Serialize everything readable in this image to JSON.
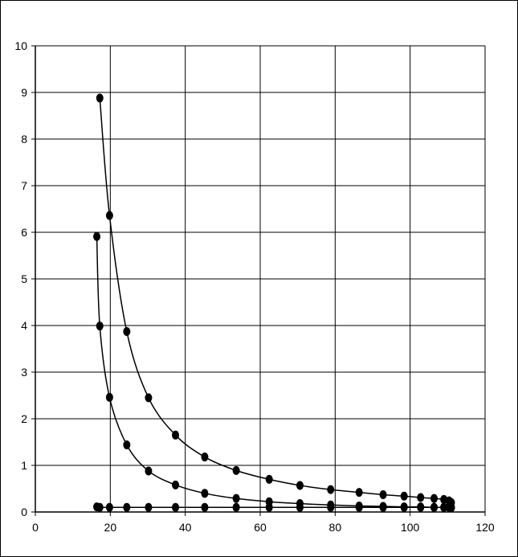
{
  "chart_data": {
    "type": "scatter",
    "title": "",
    "xlabel": "",
    "ylabel": "",
    "xlim": [
      0,
      120
    ],
    "ylim": [
      0,
      10
    ],
    "x_ticks": [
      "0",
      "20",
      "40",
      "60",
      "80",
      "100",
      "120"
    ],
    "y_ticks": [
      "0",
      "1",
      "2",
      "3",
      "4",
      "5",
      "6",
      "7",
      "8",
      "9",
      "10"
    ],
    "grid": true,
    "legend": "none",
    "colors": {
      "series": "#000000",
      "grid": "#000000",
      "background": "#ffffff"
    },
    "series": [
      {
        "points": [
          [
            17.2,
            8.88
          ],
          [
            19.8,
            6.36
          ],
          [
            24.4,
            3.87
          ],
          [
            30.2,
            2.45
          ],
          [
            37.4,
            1.65
          ],
          [
            45.2,
            1.18
          ],
          [
            53.6,
            0.89
          ],
          [
            62.4,
            0.7
          ],
          [
            70.6,
            0.57
          ],
          [
            78.8,
            0.48
          ],
          [
            86.4,
            0.42
          ],
          [
            92.8,
            0.37
          ],
          [
            98.4,
            0.34
          ],
          [
            102.8,
            0.31
          ],
          [
            106.4,
            0.29
          ],
          [
            109.0,
            0.27
          ],
          [
            110.4,
            0.24
          ],
          [
            111.0,
            0.2
          ]
        ]
      },
      {
        "points": [
          [
            16.4,
            5.91
          ],
          [
            17.2,
            3.99
          ],
          [
            19.8,
            2.46
          ],
          [
            24.4,
            1.44
          ],
          [
            30.2,
            0.88
          ],
          [
            37.4,
            0.58
          ],
          [
            45.2,
            0.4
          ],
          [
            53.6,
            0.29
          ],
          [
            62.4,
            0.22
          ],
          [
            70.6,
            0.18
          ],
          [
            78.8,
            0.15
          ],
          [
            86.4,
            0.13
          ],
          [
            92.8,
            0.12
          ],
          [
            98.4,
            0.11
          ],
          [
            102.8,
            0.11
          ],
          [
            106.4,
            0.1
          ],
          [
            109.0,
            0.1
          ],
          [
            110.4,
            0.1
          ],
          [
            111.0,
            0.09
          ]
        ]
      },
      {
        "points": [
          [
            16.4,
            0.11
          ],
          [
            17.2,
            0.1
          ],
          [
            19.8,
            0.1
          ],
          [
            24.4,
            0.1
          ],
          [
            30.2,
            0.1
          ],
          [
            37.4,
            0.1
          ],
          [
            45.2,
            0.1
          ],
          [
            53.6,
            0.1
          ],
          [
            62.4,
            0.1
          ],
          [
            70.6,
            0.1
          ],
          [
            78.8,
            0.1
          ],
          [
            86.4,
            0.1
          ],
          [
            92.8,
            0.1
          ],
          [
            98.4,
            0.1
          ],
          [
            102.8,
            0.1
          ],
          [
            106.4,
            0.1
          ],
          [
            109.0,
            0.1
          ],
          [
            110.4,
            0.1
          ],
          [
            111.0,
            0.1
          ]
        ]
      }
    ]
  }
}
